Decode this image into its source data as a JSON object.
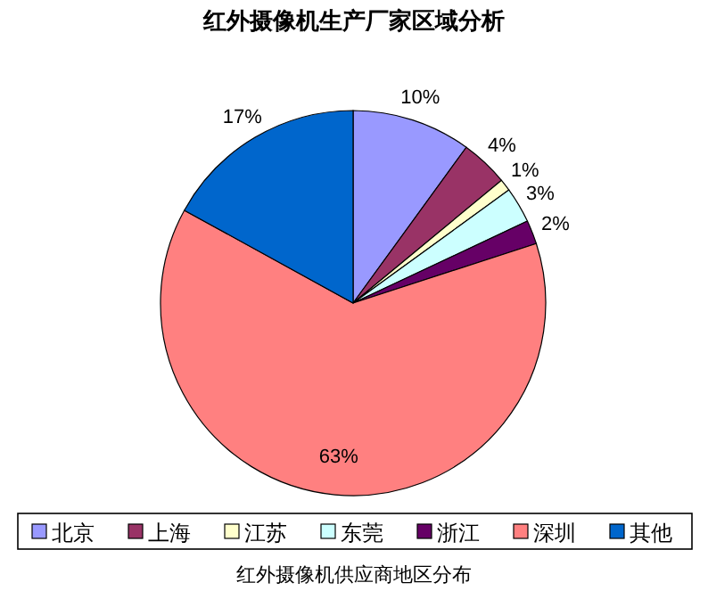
{
  "chart_data": {
    "type": "pie",
    "title": "红外摄像机生产厂家区域分析",
    "categories": [
      "北京",
      "上海",
      "江苏",
      "东莞",
      "浙江",
      "深圳",
      "其他"
    ],
    "values": [
      10,
      4,
      1,
      3,
      2,
      63,
      17
    ],
    "colors": [
      "#9999ff",
      "#993366",
      "#ffffcc",
      "#ccffff",
      "#660066",
      "#ff8080",
      "#0066cc"
    ],
    "value_labels": [
      "10%",
      "4%",
      "1%",
      "3%",
      "2%",
      "63%",
      "17%"
    ],
    "legend": "bottom",
    "annotations": [
      "红外摄像机供应商地区分布"
    ]
  }
}
